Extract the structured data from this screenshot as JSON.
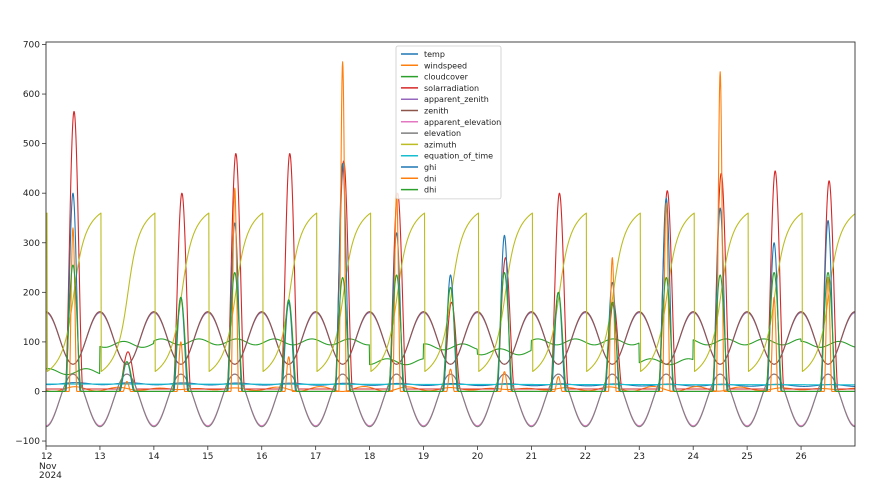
{
  "chart_data": {
    "type": "line",
    "x_date_start": "2024-11-12",
    "x_date_end": "2024-11-27",
    "ylim": [
      -110,
      705
    ],
    "yticks": [
      -100,
      0,
      100,
      200,
      300,
      400,
      500,
      600,
      700
    ],
    "ytick_labels": [
      "−100",
      "0",
      "100",
      "200",
      "300",
      "400",
      "500",
      "600",
      "700"
    ],
    "xticks": [
      12,
      13,
      14,
      15,
      16,
      17,
      18,
      19,
      20,
      21,
      22,
      23,
      24,
      25,
      26
    ],
    "xtick_labels": [
      "12",
      "13",
      "14",
      "15",
      "16",
      "17",
      "18",
      "19",
      "20",
      "21",
      "22",
      "23",
      "24",
      "25",
      "26"
    ],
    "xtick_sub": [
      "Nov",
      "2024"
    ],
    "grid": false,
    "legend_position": "top-center",
    "series": [
      {
        "name": "temp",
        "color": "#1f77b4",
        "description": "~15 baseline, slowly decreasing to ~12"
      },
      {
        "name": "windspeed",
        "color": "#ff7f0e",
        "description": "~5 baseline"
      },
      {
        "name": "cloudcover",
        "color": "#2ca02c",
        "description": "0-100 %"
      },
      {
        "name": "solarradiation",
        "color": "#d62728",
        "peaks": [
          565,
          80,
          400,
          480,
          480,
          465,
          400,
          180,
          270,
          400,
          180,
          405,
          440,
          445,
          425
        ]
      },
      {
        "name": "apparent_zenith",
        "color": "#9467bd",
        "description": "sinusoid ~55-160"
      },
      {
        "name": "zenith",
        "color": "#8c564b",
        "description": "sinusoid ~55-160"
      },
      {
        "name": "apparent_elevation",
        "color": "#e377c2",
        "description": "sinusoid ~-70-35"
      },
      {
        "name": "elevation",
        "color": "#7f7f7f",
        "description": "sinusoid ~-70-35"
      },
      {
        "name": "azimuth",
        "color": "#bcbd22",
        "description": "sawtooth 0-360 daily"
      },
      {
        "name": "equation_of_time",
        "color": "#17becf",
        "description": "~15 nearly constant"
      },
      {
        "name": "ghi",
        "color": "#1f77b4",
        "peaks": [
          400,
          60,
          190,
          340,
          180,
          460,
          320,
          235,
          315,
          200,
          220,
          390,
          370,
          300,
          345
        ]
      },
      {
        "name": "dni",
        "color": "#ff7f0e",
        "peaks": [
          330,
          20,
          100,
          410,
          70,
          665,
          400,
          45,
          40,
          30,
          270,
          380,
          645,
          190,
          230
        ]
      },
      {
        "name": "dhi",
        "color": "#2ca02c",
        "peaks": [
          255,
          60,
          190,
          240,
          185,
          230,
          235,
          210,
          240,
          200,
          180,
          230,
          235,
          240,
          240
        ]
      }
    ]
  }
}
